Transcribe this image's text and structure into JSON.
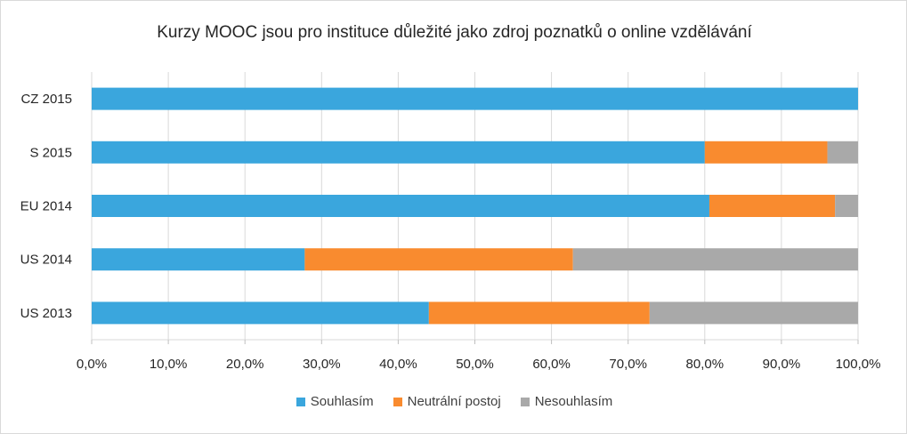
{
  "chart_data": {
    "type": "bar",
    "orientation": "horizontal",
    "stacked": "percent",
    "title": "Kurzy MOOC jsou pro instituce důležité jako zdroj poznatků o online vzdělávání",
    "categories": [
      "CZ 2015",
      "S 2015",
      "EU 2014",
      "US 2014",
      "US 2013"
    ],
    "series": [
      {
        "name": "Souhlasím",
        "color": "#3aa6dd",
        "values": [
          100,
          80,
          80.6,
          27.8,
          44
        ]
      },
      {
        "name": "Neutrální postoj",
        "color": "#f98b2f",
        "values": [
          0,
          16,
          16.4,
          35,
          28.8
        ]
      },
      {
        "name": "Nesouhlasím",
        "color": "#a9a9a9",
        "values": [
          0,
          4,
          3,
          37.2,
          27.2
        ]
      }
    ],
    "xlim": [
      0,
      100
    ],
    "x_ticks": [
      0,
      10,
      20,
      30,
      40,
      50,
      60,
      70,
      80,
      90,
      100
    ],
    "x_tick_labels": [
      "0,0%",
      "10,0%",
      "20,0%",
      "30,0%",
      "40,0%",
      "50,0%",
      "60,0%",
      "70,0%",
      "80,0%",
      "90,0%",
      "100,0%"
    ],
    "grid": true,
    "legend_position": "bottom"
  }
}
